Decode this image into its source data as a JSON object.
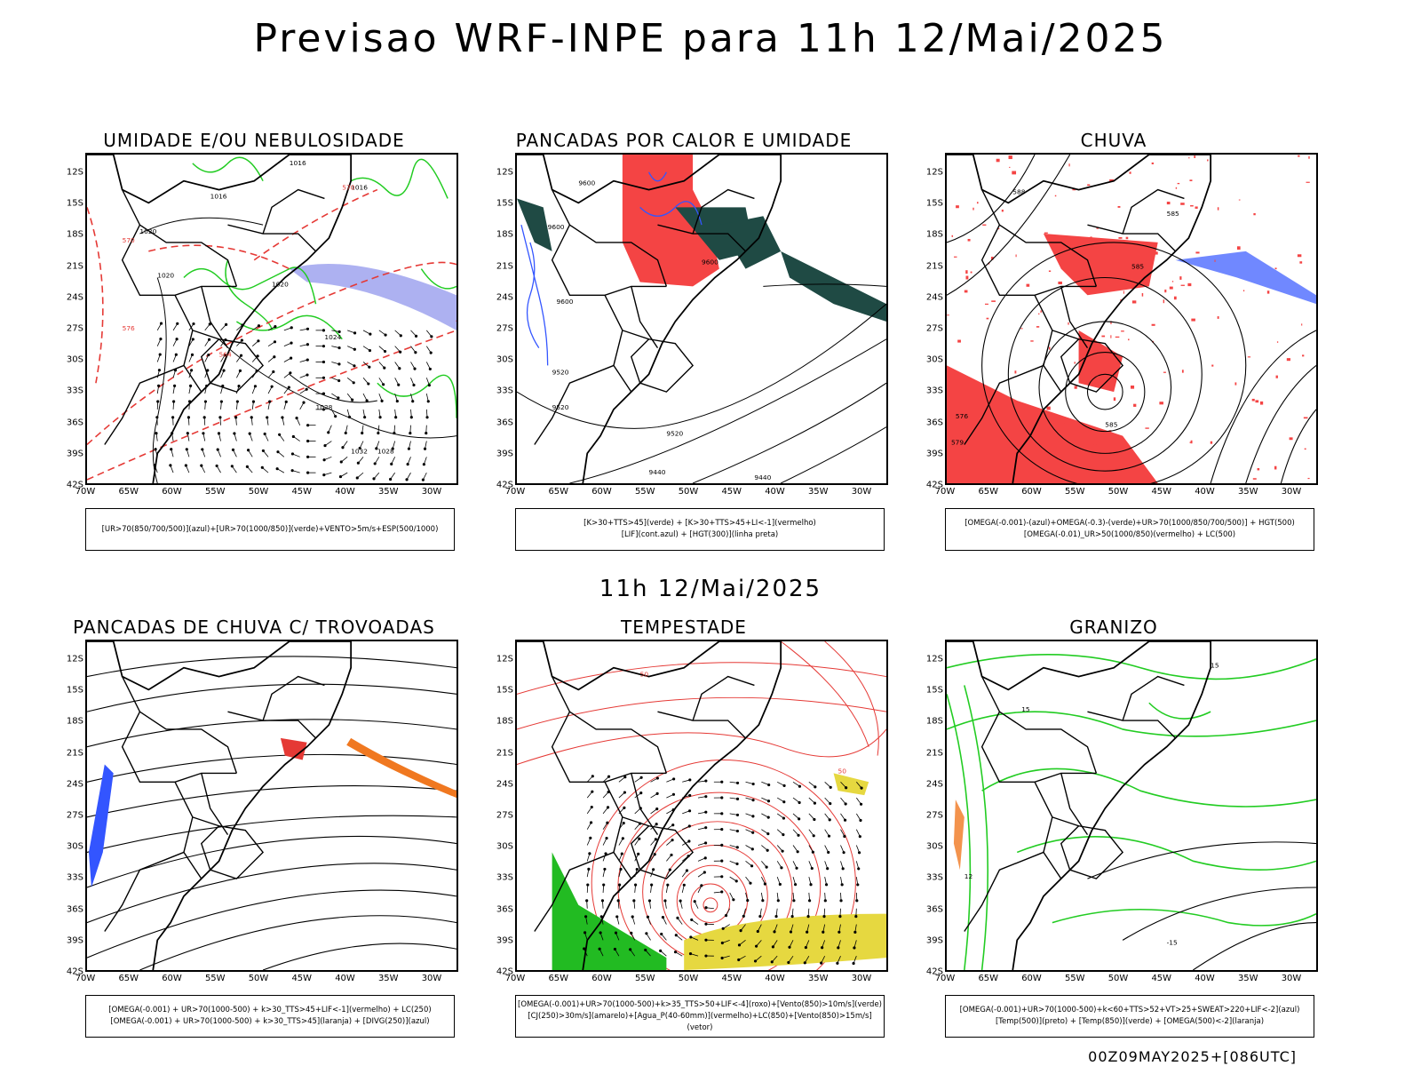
{
  "title": "Previsao WRF-INPE  para 11h 12/Mai/2025",
  "mid_title": "11h 12/Mai/2025",
  "footer": "00Z09MAY2025+[086UTC]",
  "lat_labels": [
    "12S",
    "15S",
    "18S",
    "21S",
    "24S",
    "27S",
    "30S",
    "33S",
    "36S",
    "39S",
    "42S"
  ],
  "lon_labels": [
    "70W",
    "65W",
    "60W",
    "55W",
    "50W",
    "45W",
    "40W",
    "35W",
    "30W"
  ],
  "colors": {
    "red": "#e53935",
    "green": "#22cc22",
    "blue": "#3355ff",
    "purple": "#9fa3ee",
    "dark_green": "#1f4a44",
    "yellow": "#e6d840",
    "orange": "#f07820"
  },
  "panels": [
    {
      "title": "UMIDADE E/OU NEBULOSIDADE",
      "legend_lines": [
        "[UR>70(850/700/500)](azul)+[UR>70(1000/850)](verde)+VENTO>5m/s+ESP(500/1000)"
      ],
      "contour_labels": [
        "1016",
        "1016",
        "1016",
        "1020",
        "1020",
        "1020",
        "1024",
        "1028",
        "1032",
        "1028",
        "570",
        "576",
        "564",
        "570"
      ]
    },
    {
      "title": "PANCADAS POR CALOR E UMIDADE",
      "legend_lines": [
        "[K>30+TTS>45](verde) + [K>30+TTS>45+LI<-1](vermelho)",
        "[LIF](cont.azul) + [HGT(300)](linha preta)"
      ],
      "contour_labels": [
        "9600",
        "9600",
        "9600",
        "9600",
        "9520",
        "9520",
        "9440",
        "9440",
        "9520"
      ]
    },
    {
      "title": "CHUVA",
      "legend_lines": [
        "[OMEGA(-0.001)-(azul)+OMEGA(-0.3)-(verde)+UR>70(1000/850/700/500)] + HGT(500)",
        "[OMEGA(-0.01)_UR>50(1000/850)(vermelho) + LC(500)"
      ],
      "contour_labels": [
        "588",
        "585",
        "585",
        "579",
        "576",
        "585"
      ]
    },
    {
      "title": "PANCADAS DE CHUVA C/ TROVOADAS",
      "legend_lines": [
        "[OMEGA(-0.001) + UR>70(1000-500) + k>30_TTS>45+LIF<-1](vermelho) + LC(250)",
        "[OMEGA(-0.001) + UR>70(1000-500) + k>30_TTS>45](laranja) + [DIVG(250)](azul)"
      ],
      "contour_labels": []
    },
    {
      "title": "TEMPESTADE",
      "legend_lines": [
        "[OMEGA(-0.001)+UR>70(1000-500)+k>35_TTS>50+LIF<-4](roxo)+[Vento(850)>10m/s](verde)",
        "[CJ(250)>30m/s](amarelo)+[Agua_P(40-60mm)](vermelho)+LC(850)+[Vento(850)>15m/s](vetor)"
      ],
      "contour_labels": [
        "50",
        "50"
      ]
    },
    {
      "title": "GRANIZO",
      "legend_lines": [
        "[OMEGA(-0.001)+UR>70(1000-500)+k<60+TTS>52+VT>25+SWEAT>220+LIF<-2](azul)",
        "[Temp(500)](preto) + [Temp(850)](verde) + [OMEGA(500)<-2](laranja)"
      ],
      "contour_labels": [
        "15",
        "12",
        "15",
        "-15"
      ]
    }
  ]
}
